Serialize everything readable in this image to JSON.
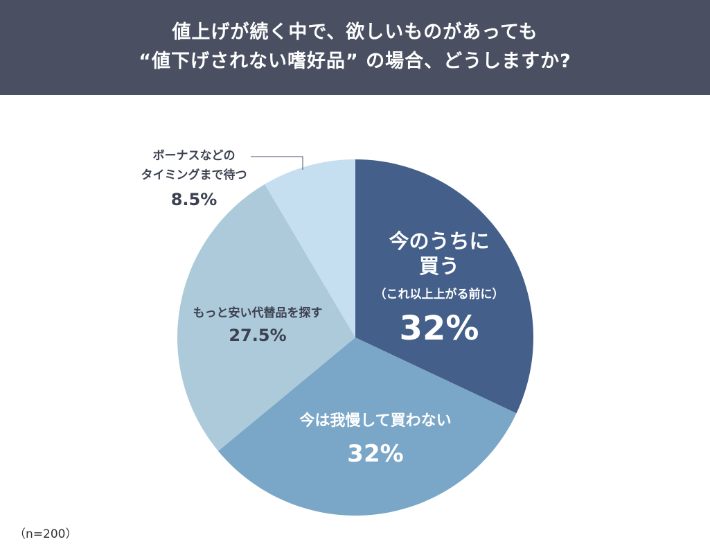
{
  "title": {
    "line1": "値上げが続く中で、欲しいものがあっても",
    "line2": "“値下げされない嗜好品” の場合、どうしますか?"
  },
  "sample_note": "（n=200）",
  "chart_data": {
    "type": "pie",
    "start_angle_deg": 0,
    "direction": "clockwise",
    "slices": [
      {
        "label_lines": [
          "今のうちに",
          "買う"
        ],
        "sub_label": "（これ以上上がる前に）",
        "value": 32,
        "value_label": "32%",
        "color": "#445f89",
        "text_color": "#ffffff"
      },
      {
        "label_lines": [
          "今は我慢して買わない"
        ],
        "sub_label": "",
        "value": 32,
        "value_label": "32%",
        "color": "#7aa7c7",
        "text_color": "#ffffff"
      },
      {
        "label_lines": [
          "もっと安い代替品を探す"
        ],
        "sub_label": "",
        "value": 27.5,
        "value_label": "27.5%",
        "color": "#adcadb",
        "text_color": "#3c4150"
      },
      {
        "label_lines": [
          "ボーナスなどの",
          "タイミングまで待つ"
        ],
        "sub_label": "",
        "value": 8.5,
        "value_label": "8.5%",
        "color": "#c5def0",
        "text_color": "#3c4150"
      }
    ]
  }
}
